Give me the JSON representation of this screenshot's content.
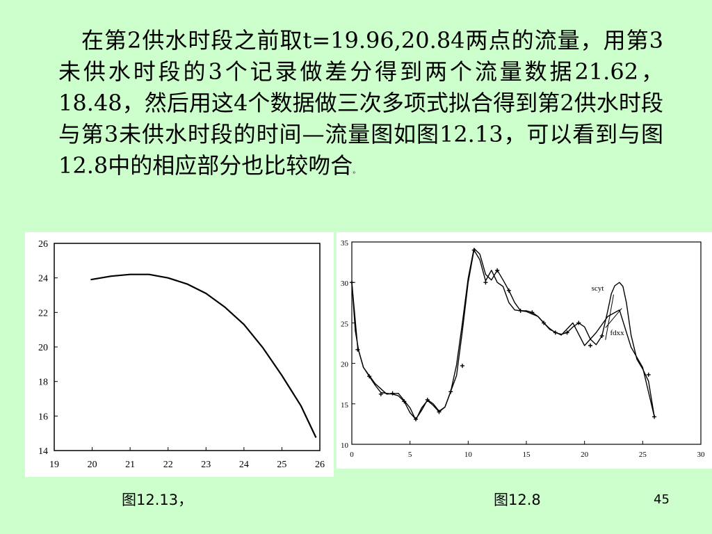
{
  "slide": {
    "paragraph_parts": [
      "在第2供水时段之前取t=19.96,20.84两点的流量，用第3未供水时段的3个记录做差分得到两个流量数据21.62，18.48，然后用这4个数据做三次多项式拟合得到第2供水时段与第3未供水时段的时间—流量图如图12.13，可以看到与图12.8中的相应部分也比较吻合",
      "。"
    ],
    "caption_left": "图12.13，",
    "caption_right": "图12.8",
    "page_number": "45",
    "background_color": "#ccffcc"
  },
  "chart_data": [
    {
      "type": "line",
      "xlim": [
        19,
        26
      ],
      "ylim": [
        14,
        26
      ],
      "xticks": [
        19,
        20,
        21,
        22,
        23,
        24,
        25,
        26
      ],
      "yticks": [
        14,
        16,
        18,
        20,
        22,
        24,
        26
      ],
      "grid": false,
      "series": [
        {
          "x": [
            19.96,
            20.5,
            21.0,
            21.5,
            22.0,
            22.5,
            23.0,
            23.5,
            24.0,
            24.5,
            25.0,
            25.5,
            25.9
          ],
          "y": [
            23.9,
            24.1,
            24.2,
            24.2,
            24.0,
            23.65,
            23.1,
            22.3,
            21.3,
            19.95,
            18.35,
            16.6,
            14.75
          ]
        }
      ]
    },
    {
      "type": "line",
      "xlim": [
        0,
        30
      ],
      "ylim": [
        10,
        35
      ],
      "xticks": [
        0,
        5,
        10,
        15,
        20,
        25,
        30
      ],
      "yticks": [
        10,
        15,
        20,
        25,
        30,
        35
      ],
      "grid": false,
      "annotations": [
        "scyt",
        "fdxx"
      ],
      "series": [
        {
          "label": "scyt",
          "x": [
            0,
            0.3,
            0.6,
            1,
            1.5,
            2,
            2.5,
            3,
            3.5,
            4,
            4.5,
            5,
            5.5,
            6,
            6.5,
            7,
            7.5,
            8,
            8.5,
            9,
            9.5,
            10,
            10.5,
            11,
            11.5,
            12,
            12.5,
            13,
            13.5,
            14,
            14.5,
            15,
            15.5,
            16,
            16.5,
            17,
            17.5,
            18,
            18.5,
            19,
            19.5,
            20,
            20.5,
            21,
            21.5,
            22,
            22.3,
            22.6,
            23,
            23.3,
            23.6,
            24,
            24.5,
            25,
            25.5,
            26
          ],
          "y": [
            30,
            24,
            21.5,
            19.5,
            18.4,
            17.3,
            16.4,
            16.3,
            16.2,
            16,
            15.3,
            13.9,
            13.1,
            14.2,
            15.5,
            15,
            14.1,
            14.6,
            16.5,
            19.8,
            25,
            30.5,
            34.2,
            33.5,
            31,
            30.3,
            31.5,
            30.3,
            29,
            27.5,
            26.5,
            26.5,
            26.3,
            25.8,
            25,
            24.3,
            23.8,
            23.6,
            23.8,
            24.5,
            25,
            24.5,
            23,
            22.3,
            23.4,
            26.5,
            28.6,
            29.6,
            30,
            29.5,
            27.5,
            23.5,
            20.5,
            19.3,
            17.8,
            13.4
          ]
        },
        {
          "label": "fdxx",
          "x": [
            0,
            0.5,
            1,
            1.5,
            2,
            3,
            4,
            5,
            5.5,
            6,
            6.5,
            7,
            7.5,
            8,
            9,
            9.5,
            10,
            10.5,
            11,
            11.5,
            12,
            12.5,
            13,
            13.5,
            14,
            15,
            16,
            17,
            18,
            19,
            20,
            21,
            22,
            23,
            24,
            25,
            26
          ],
          "y": [
            30,
            22,
            19.5,
            18.5,
            17.5,
            16.2,
            16.3,
            14.5,
            13,
            14.5,
            15.4,
            14.8,
            14,
            14.6,
            18.5,
            24,
            30,
            34,
            32.8,
            30.2,
            31.5,
            30,
            29.5,
            27.5,
            26.6,
            26.4,
            25.8,
            24.2,
            23.5,
            25,
            22.2,
            23.8,
            25.8,
            26.6,
            22,
            19.5,
            13.4
          ]
        }
      ],
      "markers": {
        "x": [
          0,
          0.5,
          1.5,
          2.5,
          3.5,
          4.5,
          5.5,
          6.5,
          7.5,
          8.5,
          9.5,
          10.5,
          11.5,
          12.5,
          13.5,
          14.5,
          15.5,
          16.5,
          17.5,
          18.5,
          19.5,
          20.5,
          21.5,
          25.5,
          26
        ],
        "y": [
          30,
          21.7,
          18.4,
          16.2,
          16.3,
          15.3,
          13.1,
          15.5,
          14,
          16.5,
          19.7,
          34,
          30,
          31.5,
          29,
          26.5,
          26.3,
          25,
          23.8,
          23.8,
          25,
          22.2,
          23.4,
          18.6,
          13.4
        ]
      }
    }
  ]
}
